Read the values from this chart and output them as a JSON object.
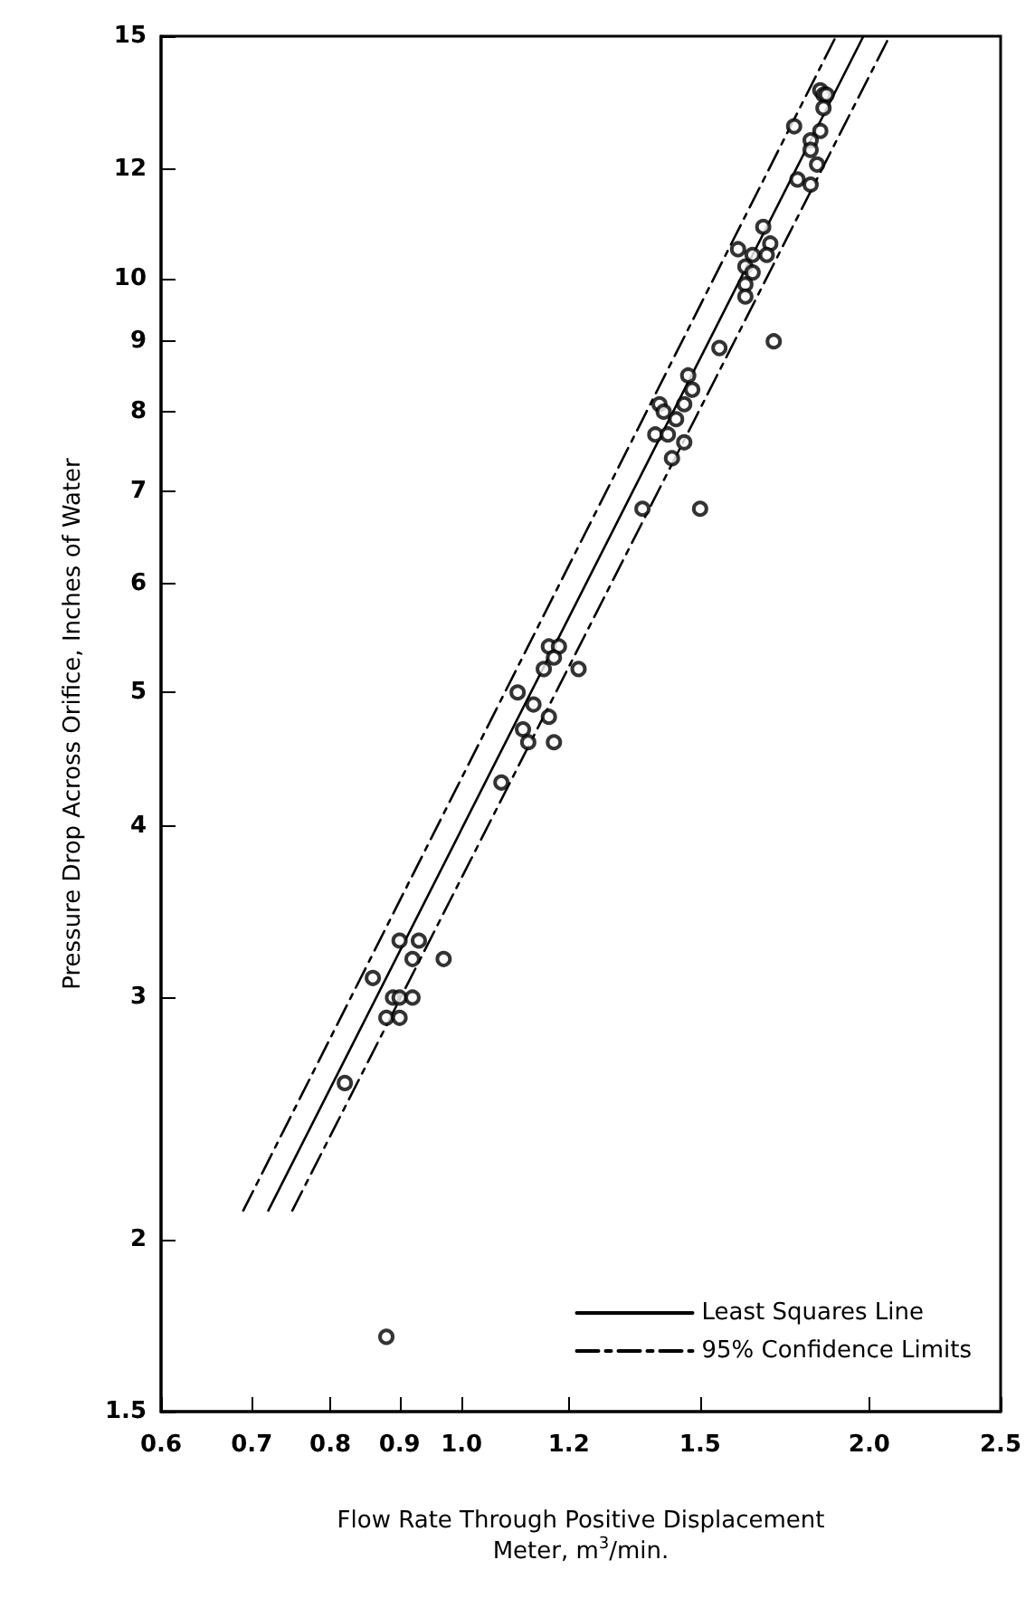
{
  "chart_data": {
    "type": "scatter",
    "xlabel": "Flow Rate Through Positive Displacement\nMeter, m$^{3}$/min.",
    "ylabel": "Pressure Drop Across Orifice, Inches of Water",
    "log": "xy",
    "xlim": [
      0.6,
      2.5
    ],
    "ylim": [
      1.5,
      15
    ],
    "xticks": [
      0.6,
      0.7,
      0.8,
      0.9,
      {
        "value": 1,
        "label": "1.0"
      },
      1.2,
      1.5,
      {
        "value": 2,
        "label": "2.0"
      },
      2.5
    ],
    "yticks": [
      1.5,
      2,
      3,
      4,
      5,
      6,
      7,
      8,
      9,
      10,
      12,
      15
    ],
    "grid": false,
    "legend": "bottom right",
    "marker": "circle",
    "series": [
      {
        "color": "#000000",
        "x": [
          0.82,
          0.88,
          0.9,
          0.93,
          0.92,
          0.97,
          0.86,
          0.89,
          0.9,
          0.92,
          0.88,
          0.9,
          1.16,
          1.18,
          1.17,
          1.15,
          1.22,
          1.1,
          1.13,
          1.16,
          1.11,
          1.12,
          1.17,
          1.07,
          1.47,
          1.48,
          1.4,
          1.46,
          1.41,
          1.44,
          1.39,
          1.42,
          1.46,
          1.43,
          1.36,
          1.5,
          1.84,
          1.85,
          1.86,
          1.85,
          1.76,
          1.84,
          1.81,
          1.81,
          1.83,
          1.77,
          1.81,
          1.67,
          1.69,
          1.6,
          1.64,
          1.68,
          1.62,
          1.64,
          1.62,
          1.62,
          1.55,
          1.7
        ],
        "values": [
          2.6,
          1.7,
          3.3,
          3.3,
          3.2,
          3.2,
          3.1,
          3,
          3,
          3,
          2.9,
          2.9,
          5.4,
          5.4,
          5.3,
          5.2,
          5.2,
          5,
          4.9,
          4.8,
          4.7,
          4.6,
          4.6,
          4.3,
          8.5,
          8.3,
          8.1,
          8.1,
          8,
          7.9,
          7.7,
          7.7,
          7.6,
          7.4,
          6.8,
          6.8,
          13.7,
          13.6,
          13.6,
          13.3,
          12.9,
          12.8,
          12.6,
          12.4,
          12.1,
          11.8,
          11.7,
          10.9,
          10.6,
          10.5,
          10.4,
          10.4,
          10.2,
          10.1,
          9.9,
          9.7,
          8.9,
          9
        ]
      },
      {
        "type": "line",
        "name": "Least Squares Line",
        "color": "#000000",
        "line_style": "solid",
        "marker": "none",
        "x": [
          0.72,
          1.98
        ],
        "values": [
          2.1,
          15
        ]
      },
      {
        "type": "line",
        "name": "95% Confidence Limits",
        "color": "#000000",
        "line_style": "dashed",
        "marker": "none",
        "x": [
          0.69,
          1.89,
          null,
          0.75,
          2.07
        ],
        "values": [
          2.1,
          15,
          null,
          2.1,
          15
        ]
      }
    ]
  }
}
